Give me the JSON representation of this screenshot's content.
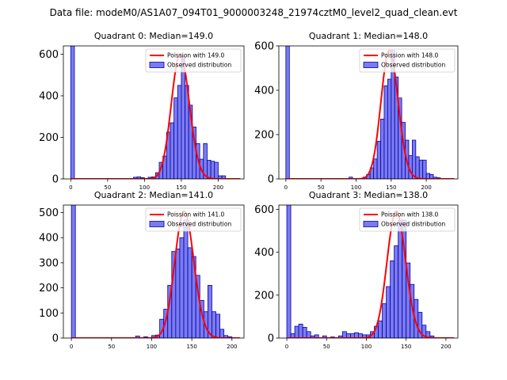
{
  "figure_title": "Data file: modeM0/AS1A07_094T01_9000003248_21974cztM0_level2_quad_clean.evt",
  "colors": {
    "bar_fill": "#7b7bf0",
    "bar_edge": "#0000aa",
    "poisson_line": "#ff0000",
    "axes": "#000000"
  },
  "chart_data": [
    {
      "type": "bar",
      "title": "Quadrant 0: Median=149.0",
      "xlim": [
        -10,
        235
      ],
      "ylim": [
        0,
        640
      ],
      "xticks": [
        0,
        50,
        100,
        150,
        200
      ],
      "yticks": [
        0,
        200,
        400,
        600
      ],
      "bin_width": 5,
      "bins": [
        {
          "x": 0,
          "value": 640
        },
        {
          "x": 85,
          "value": 8
        },
        {
          "x": 90,
          "value": 10
        },
        {
          "x": 95,
          "value": 6
        },
        {
          "x": 105,
          "value": 8
        },
        {
          "x": 110,
          "value": 10
        },
        {
          "x": 115,
          "value": 30
        },
        {
          "x": 120,
          "value": 80
        },
        {
          "x": 125,
          "value": 110
        },
        {
          "x": 130,
          "value": 225
        },
        {
          "x": 135,
          "value": 270
        },
        {
          "x": 140,
          "value": 390
        },
        {
          "x": 145,
          "value": 450
        },
        {
          "x": 150,
          "value": 590
        },
        {
          "x": 155,
          "value": 450
        },
        {
          "x": 160,
          "value": 355
        },
        {
          "x": 165,
          "value": 250
        },
        {
          "x": 170,
          "value": 170
        },
        {
          "x": 175,
          "value": 95
        },
        {
          "x": 180,
          "value": 170
        },
        {
          "x": 185,
          "value": 90
        },
        {
          "x": 190,
          "value": 85
        },
        {
          "x": 195,
          "value": 80
        },
        {
          "x": 200,
          "value": 15
        },
        {
          "x": 205,
          "value": 15
        }
      ],
      "poisson_mean": 149.0,
      "poisson_scale": 600,
      "legend": [
        {
          "label": "Poission with 149.0",
          "kind": "line"
        },
        {
          "label": "Observed distribution",
          "kind": "patch"
        }
      ],
      "legend_position": "top-right"
    },
    {
      "type": "bar",
      "title": "Quadrant 1: Median=148.0",
      "xlim": [
        -10,
        245
      ],
      "ylim": [
        0,
        600
      ],
      "xticks": [
        0,
        50,
        100,
        150,
        200
      ],
      "yticks": [
        0,
        200,
        400,
        600
      ],
      "bin_width": 5,
      "bins": [
        {
          "x": 0,
          "value": 600
        },
        {
          "x": 90,
          "value": 8
        },
        {
          "x": 110,
          "value": 8
        },
        {
          "x": 115,
          "value": 20
        },
        {
          "x": 120,
          "value": 50
        },
        {
          "x": 125,
          "value": 90
        },
        {
          "x": 130,
          "value": 170
        },
        {
          "x": 135,
          "value": 270
        },
        {
          "x": 140,
          "value": 420
        },
        {
          "x": 145,
          "value": 450
        },
        {
          "x": 150,
          "value": 580
        },
        {
          "x": 155,
          "value": 460
        },
        {
          "x": 160,
          "value": 365
        },
        {
          "x": 165,
          "value": 255
        },
        {
          "x": 170,
          "value": 175
        },
        {
          "x": 175,
          "value": 105
        },
        {
          "x": 180,
          "value": 175
        },
        {
          "x": 185,
          "value": 100
        },
        {
          "x": 190,
          "value": 85
        },
        {
          "x": 195,
          "value": 85
        },
        {
          "x": 200,
          "value": 25
        },
        {
          "x": 205,
          "value": 20
        },
        {
          "x": 210,
          "value": 8
        },
        {
          "x": 215,
          "value": 5
        }
      ],
      "poisson_mean": 148.0,
      "poisson_scale": 580,
      "legend": [
        {
          "label": "Poission with 148.0",
          "kind": "line"
        },
        {
          "label": "Observed distribution",
          "kind": "patch"
        }
      ],
      "legend_position": "top-right"
    },
    {
      "type": "bar",
      "title": "Quadrant 2: Median=141.0",
      "xlim": [
        -10,
        215
      ],
      "ylim": [
        0,
        530
      ],
      "xticks": [
        0,
        50,
        100,
        150,
        200
      ],
      "yticks": [
        0,
        100,
        200,
        300,
        400,
        500
      ],
      "bin_width": 5,
      "bins": [
        {
          "x": 0,
          "value": 530
        },
        {
          "x": 80,
          "value": 8
        },
        {
          "x": 90,
          "value": 5
        },
        {
          "x": 100,
          "value": 10
        },
        {
          "x": 105,
          "value": 12
        },
        {
          "x": 110,
          "value": 75
        },
        {
          "x": 115,
          "value": 115
        },
        {
          "x": 120,
          "value": 210
        },
        {
          "x": 125,
          "value": 345
        },
        {
          "x": 130,
          "value": 355
        },
        {
          "x": 135,
          "value": 400
        },
        {
          "x": 140,
          "value": 470
        },
        {
          "x": 145,
          "value": 360
        },
        {
          "x": 150,
          "value": 325
        },
        {
          "x": 155,
          "value": 250
        },
        {
          "x": 160,
          "value": 150
        },
        {
          "x": 165,
          "value": 105
        },
        {
          "x": 170,
          "value": 210
        },
        {
          "x": 175,
          "value": 105
        },
        {
          "x": 180,
          "value": 95
        },
        {
          "x": 185,
          "value": 35
        },
        {
          "x": 190,
          "value": 10
        },
        {
          "x": 195,
          "value": 5
        }
      ],
      "poisson_mean": 141.0,
      "poisson_scale": 505,
      "legend": [
        {
          "label": "Poission with 141.0",
          "kind": "line"
        },
        {
          "label": "Observed distribution",
          "kind": "patch"
        }
      ],
      "legend_position": "top-right"
    },
    {
      "type": "bar",
      "title": "Quadrant 3: Median=138.0",
      "xlim": [
        -10,
        215
      ],
      "ylim": [
        0,
        620
      ],
      "xticks": [
        0,
        50,
        100,
        150,
        200
      ],
      "yticks": [
        0,
        200,
        400,
        600
      ],
      "bin_width": 5,
      "bins": [
        {
          "x": 0,
          "value": 620
        },
        {
          "x": 5,
          "value": 20
        },
        {
          "x": 10,
          "value": 55
        },
        {
          "x": 15,
          "value": 65
        },
        {
          "x": 20,
          "value": 50
        },
        {
          "x": 25,
          "value": 30
        },
        {
          "x": 30,
          "value": 10
        },
        {
          "x": 35,
          "value": 15
        },
        {
          "x": 45,
          "value": 10
        },
        {
          "x": 55,
          "value": 5
        },
        {
          "x": 65,
          "value": 10
        },
        {
          "x": 70,
          "value": 30
        },
        {
          "x": 75,
          "value": 20
        },
        {
          "x": 80,
          "value": 20
        },
        {
          "x": 85,
          "value": 25
        },
        {
          "x": 90,
          "value": 20
        },
        {
          "x": 95,
          "value": 15
        },
        {
          "x": 100,
          "value": 15
        },
        {
          "x": 105,
          "value": 30
        },
        {
          "x": 110,
          "value": 55
        },
        {
          "x": 115,
          "value": 80
        },
        {
          "x": 120,
          "value": 160
        },
        {
          "x": 125,
          "value": 240
        },
        {
          "x": 130,
          "value": 360
        },
        {
          "x": 135,
          "value": 430
        },
        {
          "x": 140,
          "value": 550
        },
        {
          "x": 145,
          "value": 550
        },
        {
          "x": 150,
          "value": 350
        },
        {
          "x": 155,
          "value": 250
        },
        {
          "x": 160,
          "value": 180
        },
        {
          "x": 165,
          "value": 120
        },
        {
          "x": 170,
          "value": 60
        },
        {
          "x": 175,
          "value": 30
        },
        {
          "x": 180,
          "value": 10
        }
      ],
      "poisson_mean": 138.0,
      "poisson_scale": 590,
      "legend": [
        {
          "label": "Poission with 138.0",
          "kind": "line"
        },
        {
          "label": "Observed distribution",
          "kind": "patch"
        }
      ],
      "legend_position": "top-right"
    }
  ]
}
